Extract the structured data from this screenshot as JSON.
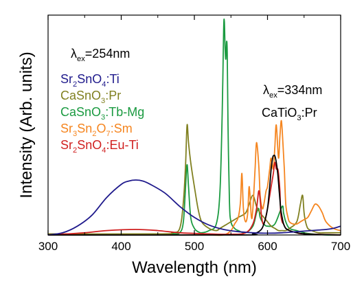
{
  "chart_data": {
    "type": "line",
    "title": "",
    "xlabel": "Wavelength (nm)",
    "ylabel": "Intensity (Arb. units)",
    "xlim": [
      300,
      700
    ],
    "ylim": [
      0,
      1.0
    ],
    "x_ticks": [
      "300",
      "400",
      "500",
      "600",
      "700"
    ],
    "grid": false,
    "y_tick_labels": false,
    "annotations": [
      {
        "id": "ex254",
        "parts": [
          [
            "λ",
            "n"
          ],
          [
            "ex",
            "sub"
          ],
          [
            "=254nm",
            "n"
          ]
        ]
      },
      {
        "id": "ex334",
        "parts": [
          [
            "λ",
            "n"
          ],
          [
            "ex",
            "sub"
          ],
          [
            "=334nm",
            "n"
          ]
        ]
      },
      {
        "id": "catio3",
        "color": "#000000",
        "parts": [
          [
            "CaTiO",
            "n"
          ],
          [
            "3",
            "sub"
          ],
          [
            ":Pr",
            "n"
          ]
        ]
      }
    ],
    "legend": [
      {
        "color": "#1f1a8c",
        "parts": [
          [
            "Sr",
            "n"
          ],
          [
            "2",
            "sub"
          ],
          [
            "SnO",
            "n"
          ],
          [
            "4",
            "sub"
          ],
          [
            ":Ti",
            "n"
          ]
        ]
      },
      {
        "color": "#808020",
        "parts": [
          [
            "CaSnO",
            "n"
          ],
          [
            "3",
            "sub"
          ],
          [
            ":Pr",
            "n"
          ]
        ]
      },
      {
        "color": "#1a9a40",
        "parts": [
          [
            "CaSnO",
            "n"
          ],
          [
            "3",
            "sub"
          ],
          [
            ":Tb-Mg",
            "n"
          ]
        ]
      },
      {
        "color": "#f5851f",
        "parts": [
          [
            "Sr",
            "n"
          ],
          [
            "3",
            "sub"
          ],
          [
            "Sn",
            "n"
          ],
          [
            "2",
            "sub"
          ],
          [
            "O",
            "n"
          ],
          [
            "7",
            "sub"
          ],
          [
            ":Sm",
            "n"
          ]
        ]
      },
      {
        "color": "#d01f1f",
        "parts": [
          [
            "Sr",
            "n"
          ],
          [
            "2",
            "sub"
          ],
          [
            "SnO",
            "n"
          ],
          [
            "4",
            "sub"
          ],
          [
            ":Eu-Ti",
            "n"
          ]
        ]
      }
    ],
    "series": [
      {
        "color": "#1a9a40",
        "x": [
          300,
          450,
          470,
          480,
          485,
          488,
          490,
          492,
          495,
          500,
          505,
          510,
          520,
          530,
          535,
          538,
          540,
          541,
          542,
          543,
          544,
          545,
          546,
          548,
          550,
          555,
          560,
          570,
          580,
          585,
          588,
          590,
          595,
          600,
          610,
          620,
          622,
          625,
          630,
          640,
          650,
          660,
          680,
          700
        ],
        "y": [
          0,
          0,
          0.005,
          0.01,
          0.06,
          0.22,
          0.32,
          0.22,
          0.08,
          0.03,
          0.015,
          0.01,
          0.02,
          0.05,
          0.2,
          0.55,
          0.93,
          0.97,
          0.85,
          0.8,
          0.88,
          0.82,
          0.5,
          0.15,
          0.06,
          0.03,
          0.02,
          0.01,
          0.04,
          0.1,
          0.12,
          0.08,
          0.05,
          0.04,
          0.05,
          0.13,
          0.1,
          0.06,
          0.03,
          0.02,
          0.01,
          0.005,
          0,
          0
        ]
      },
      {
        "color": "#808020",
        "x": [
          300,
          450,
          470,
          480,
          485,
          488,
          490,
          492,
          495,
          500,
          505,
          510,
          520,
          530,
          535,
          540,
          545,
          550,
          560,
          570,
          575,
          580,
          585,
          590,
          595,
          600,
          605,
          610,
          615,
          620,
          625,
          630,
          640,
          645,
          648,
          650,
          652,
          655,
          660,
          670,
          680,
          700
        ],
        "y": [
          0.005,
          0.005,
          0.01,
          0.03,
          0.15,
          0.32,
          0.5,
          0.42,
          0.33,
          0.22,
          0.12,
          0.06,
          0.03,
          0.02,
          0.03,
          0.04,
          0.05,
          0.06,
          0.08,
          0.1,
          0.14,
          0.18,
          0.13,
          0.1,
          0.08,
          0.06,
          0.04,
          0.03,
          0.02,
          0.02,
          0.02,
          0.03,
          0.06,
          0.14,
          0.18,
          0.1,
          0.06,
          0.03,
          0.02,
          0.01,
          0.01,
          0.01
        ]
      },
      {
        "color": "#f5851f",
        "x": [
          300,
          500,
          520,
          540,
          550,
          555,
          560,
          563,
          565,
          567,
          570,
          573,
          575,
          578,
          580,
          583,
          585,
          588,
          590,
          593,
          595,
          598,
          600,
          603,
          605,
          608,
          610,
          612,
          615,
          617,
          619,
          621,
          623,
          625,
          628,
          630,
          635,
          640,
          645,
          650,
          655,
          660,
          665,
          670,
          675,
          680,
          690,
          700
        ],
        "y": [
          0,
          0,
          0,
          0,
          0.02,
          0.05,
          0.08,
          0.15,
          0.28,
          0.12,
          0.06,
          0.1,
          0.22,
          0.08,
          0.12,
          0.3,
          0.42,
          0.32,
          0.18,
          0.12,
          0.14,
          0.2,
          0.22,
          0.3,
          0.35,
          0.3,
          0.4,
          0.5,
          0.35,
          0.45,
          0.52,
          0.42,
          0.3,
          0.14,
          0.08,
          0.06,
          0.05,
          0.05,
          0.06,
          0.07,
          0.08,
          0.11,
          0.14,
          0.13,
          0.1,
          0.06,
          0.03,
          0.02
        ]
      },
      {
        "color": "#d01f1f",
        "x": [
          300,
          350,
          380,
          420,
          450,
          480,
          520,
          550,
          570,
          580,
          585,
          588,
          590,
          592,
          595,
          600,
          605,
          608,
          610,
          612,
          614,
          615,
          617,
          618,
          620,
          622,
          625,
          630,
          640,
          650,
          700
        ],
        "y": [
          0,
          0.01,
          0.02,
          0.025,
          0.02,
          0.01,
          0.005,
          0.003,
          0.01,
          0.05,
          0.12,
          0.2,
          0.16,
          0.08,
          0.05,
          0.12,
          0.22,
          0.28,
          0.33,
          0.3,
          0.3,
          0.28,
          0.2,
          0.1,
          0.06,
          0.05,
          0.03,
          0.02,
          0.01,
          0.005,
          0
        ]
      },
      {
        "color": "#000000",
        "x": [
          300,
          560,
          580,
          590,
          595,
          600,
          603,
          605,
          607,
          608,
          610,
          612,
          614,
          616,
          618,
          620,
          622,
          625,
          630,
          640,
          650,
          660,
          700
        ],
        "y": [
          0,
          0,
          0.005,
          0.02,
          0.05,
          0.12,
          0.22,
          0.3,
          0.35,
          0.36,
          0.36,
          0.33,
          0.28,
          0.2,
          0.12,
          0.08,
          0.05,
          0.03,
          0.02,
          0.01,
          0.005,
          0.003,
          0
        ]
      },
      {
        "color": "#1f1a8c",
        "x": [
          300,
          320,
          340,
          360,
          380,
          400,
          410,
          420,
          430,
          440,
          460,
          480,
          500,
          520,
          540,
          560,
          580,
          600,
          620,
          640,
          660,
          680,
          690,
          700
        ],
        "y": [
          0,
          0.01,
          0.04,
          0.09,
          0.17,
          0.23,
          0.245,
          0.25,
          0.245,
          0.23,
          0.19,
          0.13,
          0.08,
          0.045,
          0.025,
          0.015,
          0.01,
          0.008,
          0.01,
          0.015,
          0.02,
          0.025,
          0.03,
          0.04
        ]
      }
    ]
  }
}
